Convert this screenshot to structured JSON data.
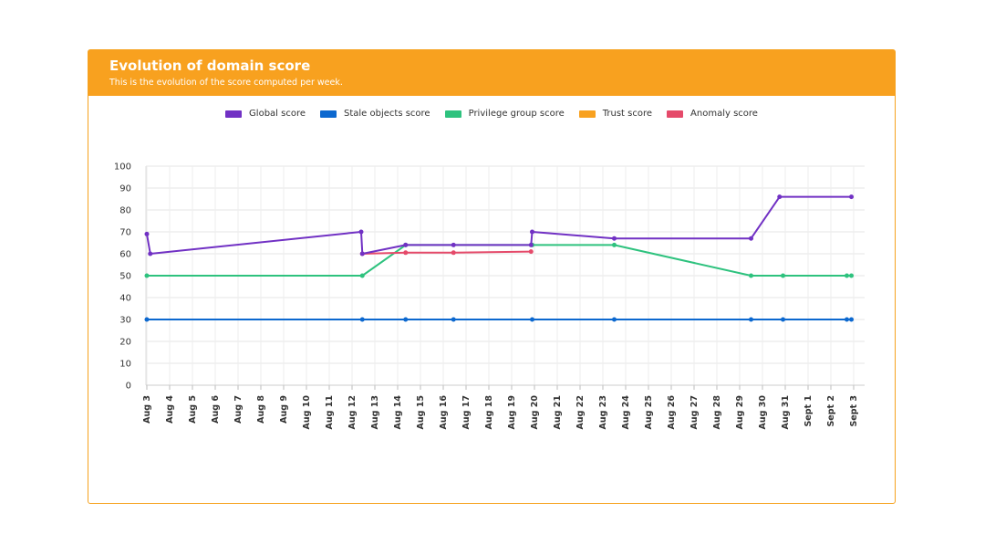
{
  "header": {
    "title": "Evolution of domain score",
    "subtitle": "This is the evolution of the score computed per week."
  },
  "chart_data": {
    "type": "line",
    "title": "Evolution of domain score",
    "subtitle": "This is the evolution of the score computed per week.",
    "ylim": [
      0,
      100
    ],
    "yticks": [
      0,
      10,
      20,
      30,
      40,
      50,
      60,
      70,
      80,
      90,
      100
    ],
    "categories": [
      "Aug 3",
      "Aug 4",
      "Aug 5",
      "Aug 6",
      "Aug 7",
      "Aug 8",
      "Aug 9",
      "Aug 10",
      "Aug 11",
      "Aug 12",
      "Aug 13",
      "Aug 14",
      "Aug 15",
      "Aug 16",
      "Aug 17",
      "Aug 18",
      "Aug 19",
      "Aug 20",
      "Aug 21",
      "Aug 22",
      "Aug 23",
      "Aug 24",
      "Aug 25",
      "Aug 26",
      "Aug 27",
      "Aug 28",
      "Aug 29",
      "Aug 30",
      "Aug 31",
      "Sept 1",
      "Sept 2",
      "Sept 3"
    ],
    "grid": true,
    "legend_position": "top",
    "series": [
      {
        "name": "Global score",
        "color": "#7131c4",
        "points": [
          [
            0.0,
            69
          ],
          [
            0.15,
            60
          ],
          [
            9.4,
            70
          ],
          [
            9.45,
            60
          ],
          [
            11.35,
            64
          ],
          [
            13.45,
            64
          ],
          [
            16.85,
            64
          ],
          [
            16.9,
            70
          ],
          [
            20.5,
            67
          ],
          [
            26.5,
            67
          ],
          [
            27.75,
            86
          ],
          [
            30.9,
            86
          ]
        ]
      },
      {
        "name": "Stale objects score",
        "color": "#0c68cf",
        "points": [
          [
            0.0,
            30
          ],
          [
            9.45,
            30
          ],
          [
            11.35,
            30
          ],
          [
            13.45,
            30
          ],
          [
            16.9,
            30
          ],
          [
            20.5,
            30
          ],
          [
            26.5,
            30
          ],
          [
            27.9,
            30
          ],
          [
            30.7,
            30
          ],
          [
            30.9,
            30
          ]
        ]
      },
      {
        "name": "Privilege group score",
        "color": "#2ec27e",
        "points": [
          [
            0.0,
            50
          ],
          [
            9.45,
            50
          ],
          [
            11.35,
            64
          ],
          [
            16.9,
            64
          ],
          [
            20.5,
            64
          ],
          [
            26.5,
            50
          ],
          [
            27.9,
            50
          ],
          [
            30.7,
            50
          ],
          [
            30.9,
            50
          ]
        ]
      },
      {
        "name": "Trust score",
        "color": "#f8a11f",
        "points": []
      },
      {
        "name": "Anomaly score",
        "color": "#e54a6a",
        "points": [
          [
            9.45,
            60
          ],
          [
            11.35,
            60.5
          ],
          [
            13.45,
            60.5
          ],
          [
            16.85,
            61
          ]
        ]
      }
    ]
  }
}
